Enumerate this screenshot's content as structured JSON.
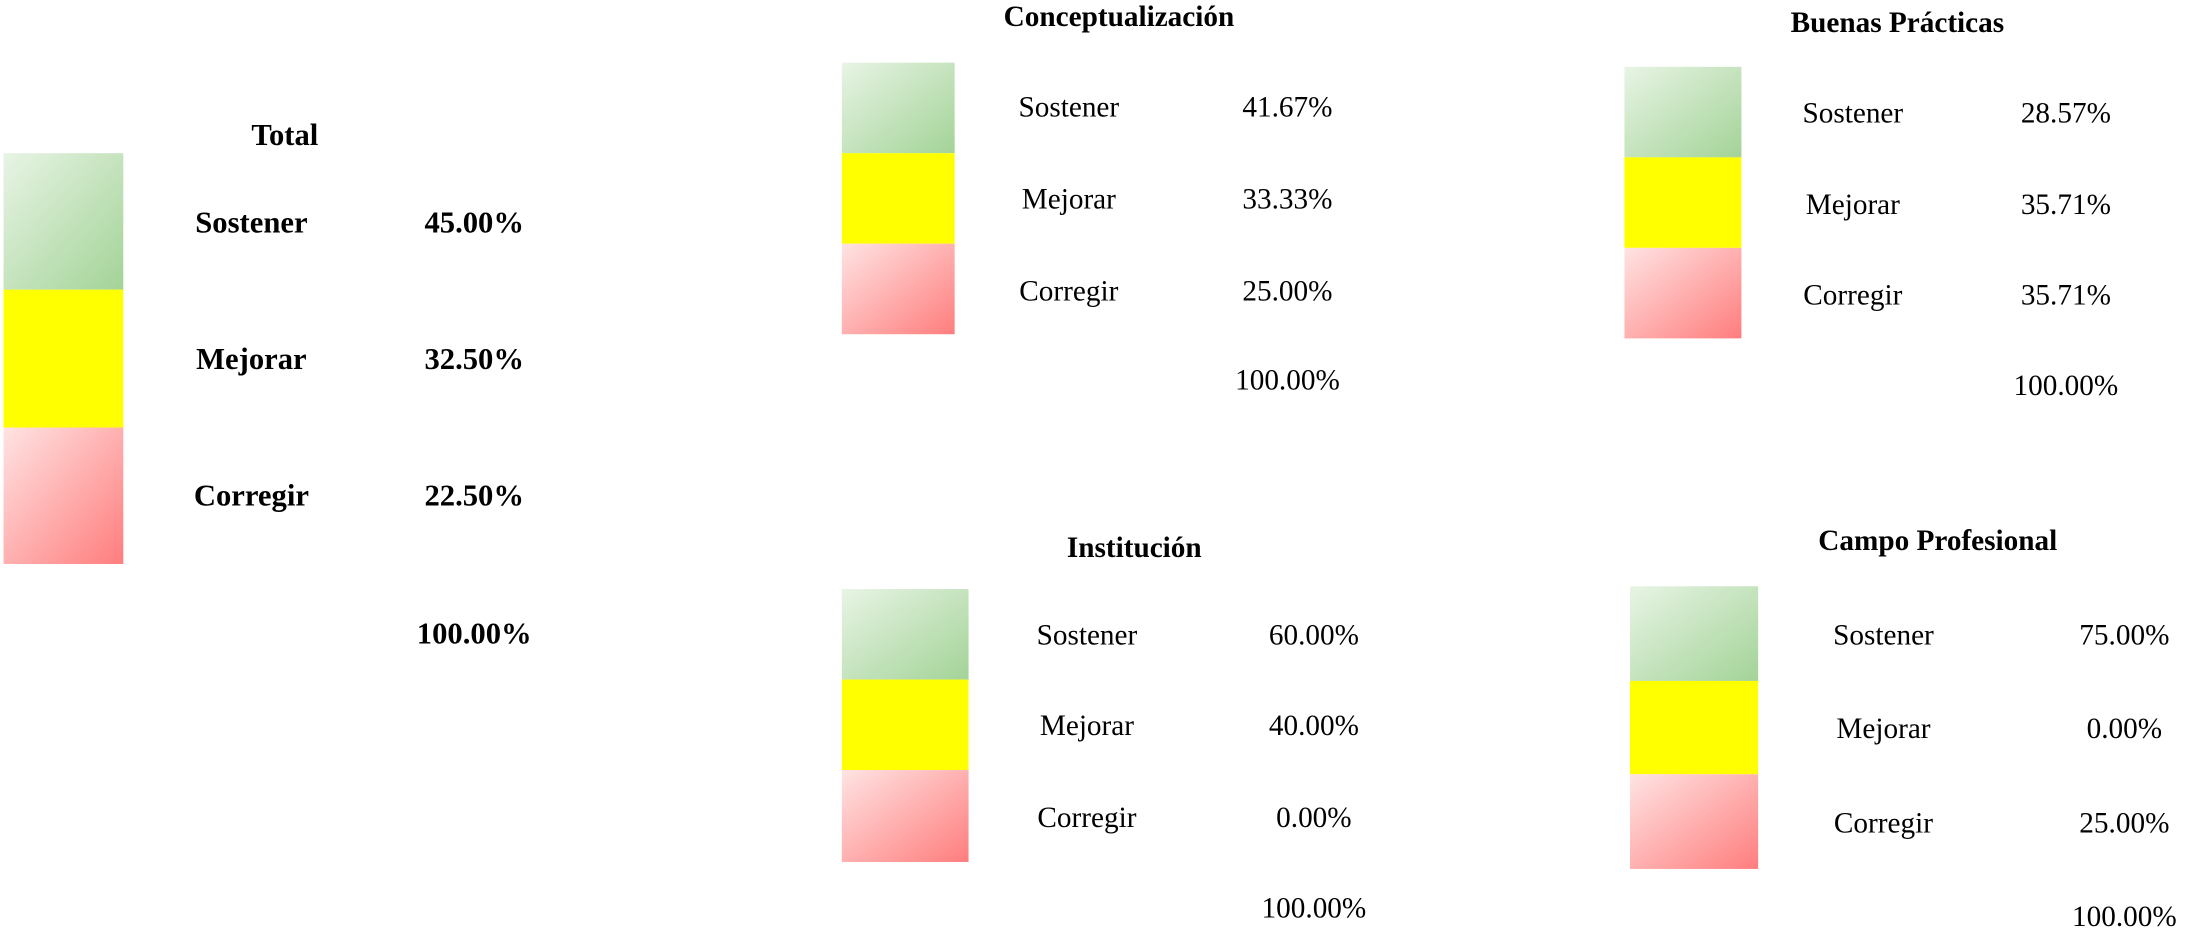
{
  "panels": [
    {
      "title": "Total",
      "rows": [
        {
          "label": "Sostener",
          "value": "45.00%"
        },
        {
          "label": "Mejorar",
          "value": "32.50%"
        },
        {
          "label": "Corregir",
          "value": "22.50%"
        }
      ],
      "total": "100.00%"
    },
    {
      "title": "Conceptualización",
      "rows": [
        {
          "label": "Sostener",
          "value": "41.67%"
        },
        {
          "label": "Mejorar",
          "value": "33.33%"
        },
        {
          "label": "Corregir",
          "value": "25.00%"
        }
      ],
      "total": "100.00%"
    },
    {
      "title": "Buenas Prácticas",
      "rows": [
        {
          "label": "Sostener",
          "value": "28.57%"
        },
        {
          "label": "Mejorar",
          "value": "35.71%"
        },
        {
          "label": "Corregir",
          "value": "35.71%"
        }
      ],
      "total": "100.00%"
    },
    {
      "title": "Institución",
      "rows": [
        {
          "label": "Sostener",
          "value": "60.00%"
        },
        {
          "label": "Mejorar",
          "value": "40.00%"
        },
        {
          "label": "Corregir",
          "value": "0.00%"
        }
      ],
      "total": "100.00%"
    },
    {
      "title": "Campo Profesional",
      "rows": [
        {
          "label": "Sostener",
          "value": "75.00%"
        },
        {
          "label": "Mejorar",
          "value": "0.00%"
        },
        {
          "label": "Corregir",
          "value": "25.00%"
        }
      ],
      "total": "100.00%"
    }
  ]
}
